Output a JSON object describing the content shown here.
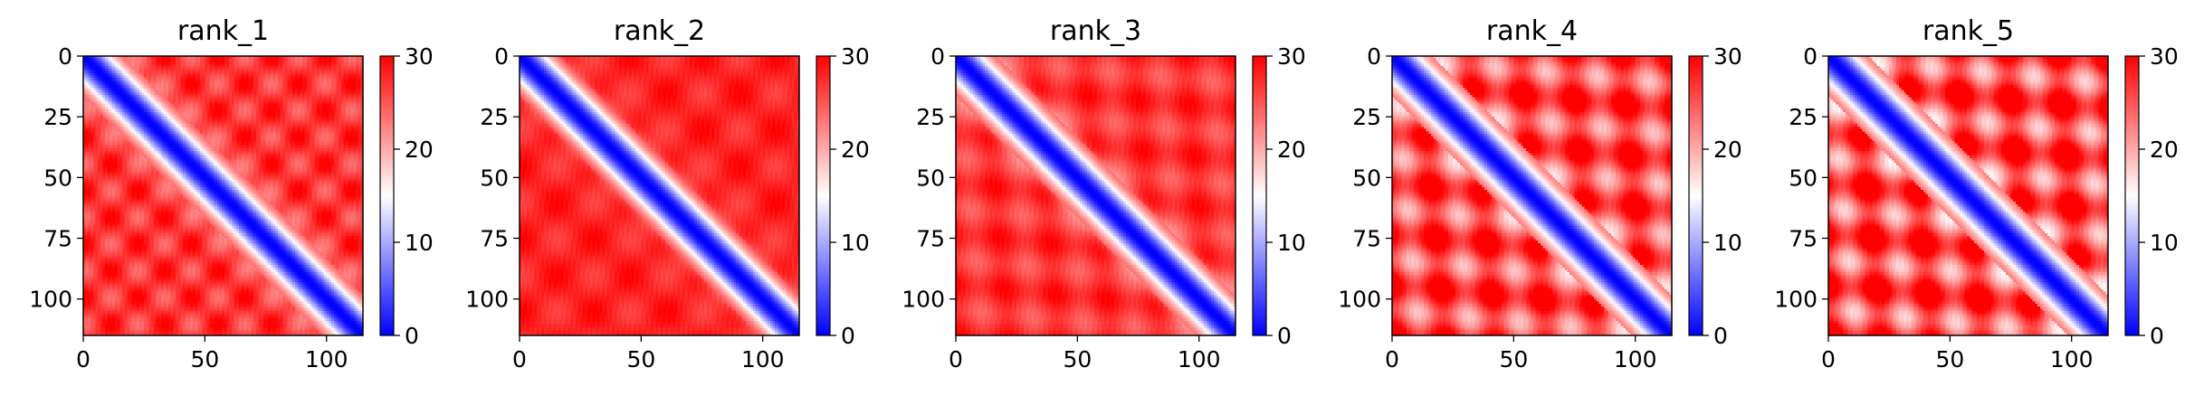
{
  "chart_data": [
    {
      "type": "heatmap",
      "title": "rank_1",
      "matrix_size": 115,
      "xticks": [
        0,
        50,
        100
      ],
      "yticks": [
        0,
        25,
        50,
        75,
        100
      ],
      "colorbar": {
        "min": 0,
        "max": 30,
        "ticks": [
          0,
          10,
          20,
          30
        ],
        "colormap": "bwr"
      },
      "diagonal_band_width": 8,
      "off_diagonal_value": 27,
      "structure": "checkered blocks",
      "ripple_amplitude": 0.35
    },
    {
      "type": "heatmap",
      "title": "rank_2",
      "matrix_size": 115,
      "xticks": [
        0,
        50,
        100
      ],
      "yticks": [
        0,
        25,
        50,
        75,
        100
      ],
      "colorbar": {
        "min": 0,
        "max": 30,
        "ticks": [
          0,
          10,
          20,
          30
        ],
        "colormap": "bwr"
      },
      "diagonal_band_width": 8,
      "off_diagonal_value": 28,
      "structure": "mostly uniform",
      "ripple_amplitude": 0.2
    },
    {
      "type": "heatmap",
      "title": "rank_3",
      "matrix_size": 115,
      "xticks": [
        0,
        50,
        100
      ],
      "yticks": [
        0,
        25,
        50,
        75,
        100
      ],
      "colorbar": {
        "min": 0,
        "max": 30,
        "ticks": [
          0,
          10,
          20,
          30
        ],
        "colormap": "bwr"
      },
      "diagonal_band_width": 8,
      "off_diagonal_value": 27,
      "structure": "faint stripes",
      "ripple_amplitude": 0.3
    },
    {
      "type": "heatmap",
      "title": "rank_4",
      "matrix_size": 115,
      "xticks": [
        0,
        50,
        100
      ],
      "yticks": [
        0,
        25,
        50,
        75,
        100
      ],
      "colorbar": {
        "min": 0,
        "max": 30,
        "ticks": [
          0,
          10,
          20,
          30
        ],
        "colormap": "bwr"
      },
      "diagonal_band_width": 8,
      "off_diagonal_value": 26,
      "structure": "parallel diagonal stripes",
      "ripple_amplitude": 0.75
    },
    {
      "type": "heatmap",
      "title": "rank_5",
      "matrix_size": 115,
      "xticks": [
        0,
        50,
        100
      ],
      "yticks": [
        0,
        25,
        50,
        75,
        100
      ],
      "colorbar": {
        "min": 0,
        "max": 30,
        "ticks": [
          0,
          10,
          20,
          30
        ],
        "colormap": "bwr"
      },
      "diagonal_band_width": 8,
      "off_diagonal_value": 26,
      "structure": "parallel diagonal stripes",
      "ripple_amplitude": 0.85
    }
  ]
}
